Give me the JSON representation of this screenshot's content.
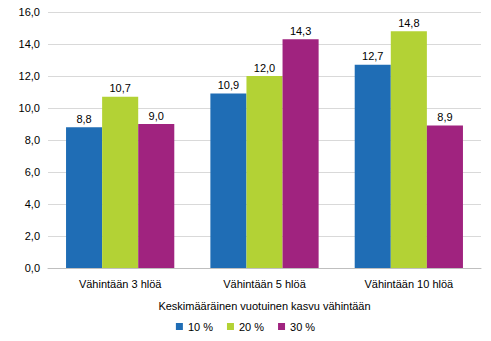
{
  "chart_data": {
    "type": "bar",
    "xlabel": "Keskimääräinen vuotuinen kasvu vähintään",
    "categories": [
      "Vähintään 3 hlöä",
      "Vähintään 5 hlöä",
      "Vähintään 10 hlöä"
    ],
    "series": [
      {
        "name": "10 %",
        "color": "#1f6db5",
        "values": [
          8.8,
          10.9,
          12.7
        ],
        "value_labels": [
          "8,8",
          "10,9",
          "12,7"
        ]
      },
      {
        "name": "20 %",
        "color": "#b3d235",
        "values": [
          10.7,
          12.0,
          14.8
        ],
        "value_labels": [
          "10,7",
          "12,0",
          "14,8"
        ]
      },
      {
        "name": "30 %",
        "color": "#a0237f",
        "values": [
          9.0,
          14.3,
          8.9
        ],
        "value_labels": [
          "9,0",
          "14,3",
          "8,9"
        ]
      }
    ],
    "ylim": [
      0,
      16
    ],
    "yticks": [
      {
        "value": 0,
        "label": "0,0"
      },
      {
        "value": 2,
        "label": "2,0"
      },
      {
        "value": 4,
        "label": "4,0"
      },
      {
        "value": 6,
        "label": "6,0"
      },
      {
        "value": 8,
        "label": "8,0"
      },
      {
        "value": 10,
        "label": "10,0"
      },
      {
        "value": 12,
        "label": "12,0"
      },
      {
        "value": 14,
        "label": "14,0"
      },
      {
        "value": 16,
        "label": "16,0"
      }
    ],
    "grid": true,
    "legend": "bottom",
    "data_labels": true
  }
}
